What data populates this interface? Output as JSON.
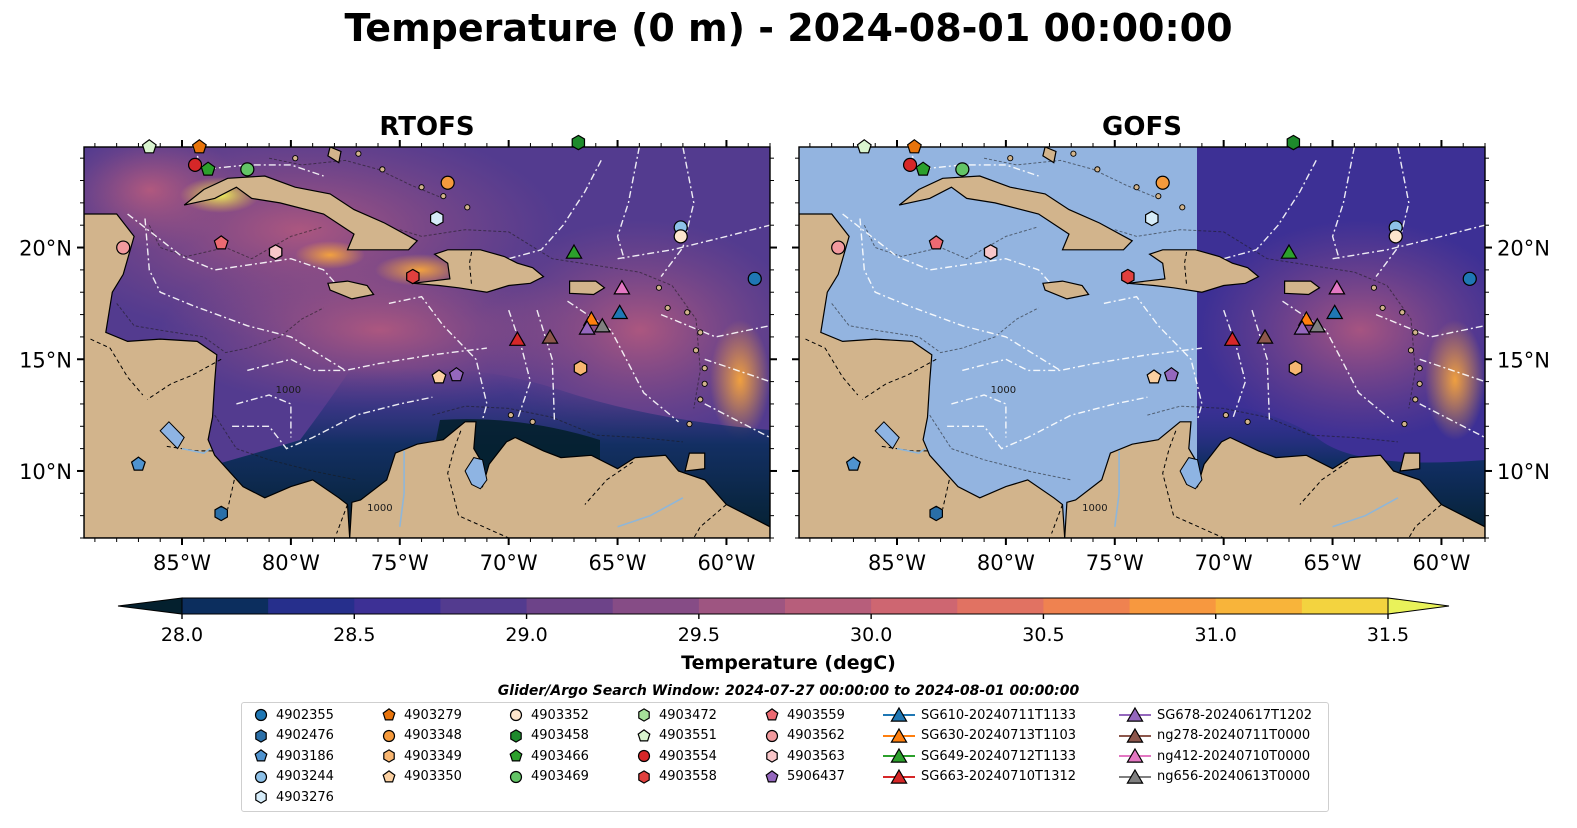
{
  "title": "Temperature (0 m) - 2024-08-01 00:00:00",
  "panels": [
    {
      "title": "RTOFS"
    },
    {
      "title": "GOFS"
    }
  ],
  "axes": {
    "lon_ticks": [
      "85°W",
      "80°W",
      "75°W",
      "70°W",
      "65°W",
      "60°W"
    ],
    "lat_ticks": [
      "20°N",
      "15°N",
      "10°N"
    ],
    "lon_range": [
      -89.5,
      -58.0
    ],
    "lat_range": [
      7.0,
      24.5
    ],
    "bathymetry_labels": [
      "1000",
      "1000"
    ]
  },
  "colorbar": {
    "label": "Temperature (degC)",
    "ticks": [
      "28.0",
      "28.5",
      "29.0",
      "29.5",
      "30.0",
      "30.5",
      "31.0",
      "31.5"
    ],
    "range": [
      28.0,
      31.5
    ],
    "step": 0.25,
    "extend": "both",
    "colors": [
      "#04202e",
      "#0c2e5e",
      "#262f8c",
      "#3d3095",
      "#533b8f",
      "#6d4389",
      "#864c86",
      "#9e5581",
      "#b75e7b",
      "#ce6671",
      "#e17262",
      "#ef8250",
      "#f7983f",
      "#f8b43a",
      "#f3d33f",
      "#e9f25a"
    ]
  },
  "search_window": "Glider/Argo Search Window: 2024-07-27 00:00:00 to 2024-08-01 00:00:00",
  "legend": {
    "columns": [
      [
        {
          "label": "4902355",
          "marker": "circle",
          "color": "#1f77b4"
        },
        {
          "label": "4902476",
          "marker": "hexagon",
          "color": "#2a6fa8"
        },
        {
          "label": "4903186",
          "marker": "pentagon",
          "color": "#4f93cf"
        },
        {
          "label": "4903244",
          "marker": "circle",
          "color": "#8ec1e8"
        },
        {
          "label": "4903276",
          "marker": "hexagon",
          "color": "#d6ecf9"
        }
      ],
      [
        {
          "label": "4903279",
          "marker": "pentagon",
          "color": "#e8740c"
        },
        {
          "label": "4903348",
          "marker": "circle",
          "color": "#f59a3c"
        },
        {
          "label": "4903349",
          "marker": "hexagon",
          "color": "#f8b671"
        },
        {
          "label": "4903350",
          "marker": "pentagon",
          "color": "#fbd0a1"
        }
      ],
      [
        {
          "label": "4903352",
          "marker": "circle",
          "color": "#fde5cc"
        },
        {
          "label": "4903458",
          "marker": "hexagon",
          "color": "#1e8a2c"
        },
        {
          "label": "4903466",
          "marker": "pentagon",
          "color": "#2ca02c"
        },
        {
          "label": "4903469",
          "marker": "circle",
          "color": "#63c466"
        }
      ],
      [
        {
          "label": "4903472",
          "marker": "hexagon",
          "color": "#a6e09a"
        },
        {
          "label": "4903551",
          "marker": "pentagon",
          "color": "#d9f4cf"
        },
        {
          "label": "4903554",
          "marker": "circle",
          "color": "#d62728"
        },
        {
          "label": "4903558",
          "marker": "hexagon",
          "color": "#e0403e"
        }
      ],
      [
        {
          "label": "4903559",
          "marker": "pentagon",
          "color": "#ec6a72"
        },
        {
          "label": "4903562",
          "marker": "circle",
          "color": "#f29a9e"
        },
        {
          "label": "4903563",
          "marker": "hexagon",
          "color": "#f8c6c9"
        },
        {
          "label": "5906437",
          "marker": "pentagon",
          "color": "#9467bd"
        }
      ],
      [
        {
          "label": "SG610-20240711T1133",
          "marker": "triangle-line",
          "color": "#1f77b4"
        },
        {
          "label": "SG630-20240713T1103",
          "marker": "triangle-line",
          "color": "#ff7f0e"
        },
        {
          "label": "SG649-20240712T1133",
          "marker": "triangle-line",
          "color": "#2ca02c"
        },
        {
          "label": "SG663-20240710T1312",
          "marker": "triangle-line",
          "color": "#d62728"
        }
      ],
      [
        {
          "label": "SG678-20240617T1202",
          "marker": "triangle-line",
          "color": "#9467bd"
        },
        {
          "label": "ng278-20240711T0000",
          "marker": "triangle-line",
          "color": "#8c564b"
        },
        {
          "label": "ng412-20240710T0000",
          "marker": "triangle-line",
          "color": "#e377c2"
        },
        {
          "label": "ng656-20240613T0000",
          "marker": "triangle-line",
          "color": "#7f7f7f"
        }
      ]
    ]
  },
  "markers": [
    {
      "id": "4902355",
      "lon": -58.7,
      "lat": 18.6
    },
    {
      "id": "4903186",
      "lon": -87.0,
      "lat": 10.3
    },
    {
      "id": "4902476",
      "lon": -83.2,
      "lat": 8.1
    },
    {
      "id": "4903244",
      "lon": -62.1,
      "lat": 20.9
    },
    {
      "id": "4903352",
      "lon": -62.1,
      "lat": 20.5
    },
    {
      "id": "4903279",
      "lon": -84.2,
      "lat": 24.5
    },
    {
      "id": "4903348",
      "lon": -72.8,
      "lat": 22.9
    },
    {
      "id": "4903349",
      "lon": -66.7,
      "lat": 14.6
    },
    {
      "id": "4903350",
      "lon": -73.2,
      "lat": 14.2
    },
    {
      "id": "4903276",
      "lon": -73.3,
      "lat": 21.3
    },
    {
      "id": "4903458",
      "lon": -66.8,
      "lat": 24.7
    },
    {
      "id": "4903466",
      "lon": -83.8,
      "lat": 23.5
    },
    {
      "id": "4903469",
      "lon": -82.0,
      "lat": 23.5
    },
    {
      "id": "4903472",
      "lon": -80.7,
      "lat": 19.8
    },
    {
      "id": "4903551",
      "lon": -86.5,
      "lat": 24.5
    },
    {
      "id": "4903554",
      "lon": -84.4,
      "lat": 23.7
    },
    {
      "id": "4903558",
      "lon": -74.4,
      "lat": 18.7
    },
    {
      "id": "4903559",
      "lon": -83.2,
      "lat": 20.2
    },
    {
      "id": "4903562",
      "lon": -87.7,
      "lat": 20.0
    },
    {
      "id": "4903563",
      "lon": -80.7,
      "lat": 19.8
    },
    {
      "id": "5906437",
      "lon": -72.4,
      "lat": 14.3
    },
    {
      "id": "SG610-20240711T1133",
      "lon": -64.9,
      "lat": 17.1
    },
    {
      "id": "SG630-20240713T1103",
      "lon": -66.2,
      "lat": 16.8
    },
    {
      "id": "SG649-20240712T1133",
      "lon": -67.0,
      "lat": 19.8
    },
    {
      "id": "SG663-20240710T1312",
      "lon": -69.6,
      "lat": 15.9
    },
    {
      "id": "SG678-20240617T1202",
      "lon": -66.4,
      "lat": 16.4
    },
    {
      "id": "ng278-20240711T0000",
      "lon": -68.1,
      "lat": 16.0
    },
    {
      "id": "ng412-20240710T0000",
      "lon": -64.8,
      "lat": 18.2
    },
    {
      "id": "ng656-20240613T0000",
      "lon": -65.7,
      "lat": 16.5
    }
  ],
  "colors": {
    "land": "#d2b48c",
    "lake": "#8eb4e3",
    "gofs_fill": "#93b4e0",
    "eez_lines": "#ffffff",
    "background": "#ffffff"
  }
}
